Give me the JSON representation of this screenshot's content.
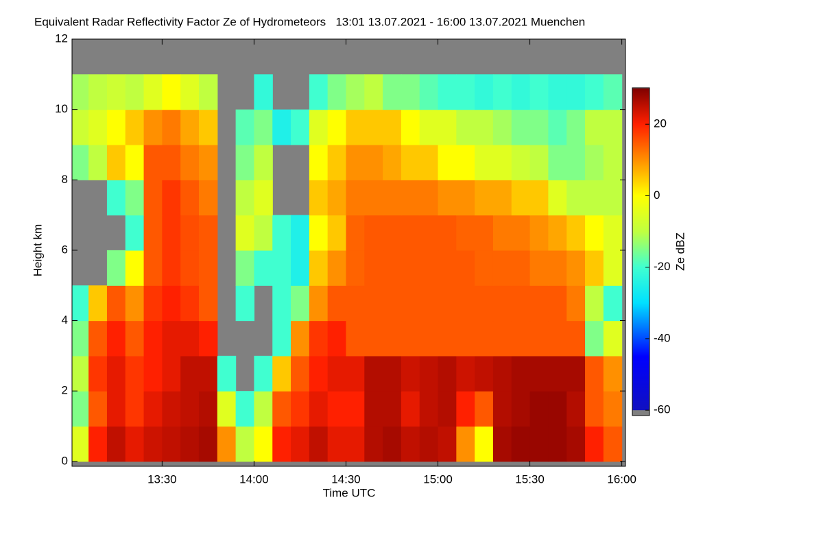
{
  "chart_data": {
    "type": "heatmap",
    "title": "Equivalent Radar Reflectivity Factor Ze of Hydrometeors   13:01 13.07.2021 - 16:00 13.07.2021 Muenchen",
    "x_label": "Time UTC",
    "y_label": "Height km",
    "colorbar_label": "Ze dBZ",
    "x": [
      13.05,
      13.15,
      13.25,
      13.35,
      13.45,
      13.55,
      13.65,
      13.75,
      13.85,
      13.95,
      14.05,
      14.15,
      14.25,
      14.35,
      14.45,
      14.55,
      14.65,
      14.75,
      14.85,
      14.95,
      15.05,
      15.15,
      15.25,
      15.35,
      15.45,
      15.55,
      15.65,
      15.75,
      15.85,
      15.95
    ],
    "y": [
      0.5,
      1.5,
      2.5,
      3.5,
      4.5,
      5.5,
      6.5,
      7.5,
      8.5,
      9.5,
      10.5,
      11.5
    ],
    "z": [
      [
        -5,
        20,
        25,
        22,
        24,
        25,
        26,
        27,
        10,
        -10,
        0,
        20,
        22,
        25,
        22,
        22,
        26,
        27,
        25,
        26,
        25,
        10,
        0,
        27,
        28,
        28,
        28,
        27,
        20,
        15
      ],
      [
        -15,
        15,
        22,
        18,
        22,
        24,
        25,
        26,
        -5,
        -20,
        -10,
        15,
        18,
        22,
        20,
        20,
        26,
        26,
        22,
        25,
        26,
        20,
        15,
        26,
        27,
        28,
        28,
        26,
        15,
        12
      ],
      [
        -10,
        18,
        22,
        18,
        20,
        22,
        25,
        25,
        -20,
        null,
        -20,
        5,
        15,
        20,
        22,
        22,
        26,
        26,
        24,
        25,
        26,
        24,
        25,
        26,
        27,
        27,
        27,
        27,
        15,
        10
      ],
      [
        -15,
        15,
        20,
        15,
        20,
        22,
        22,
        20,
        null,
        null,
        null,
        -20,
        10,
        18,
        20,
        15,
        15,
        15,
        15,
        15,
        15,
        15,
        15,
        15,
        15,
        15,
        15,
        15,
        -15,
        -5
      ],
      [
        -20,
        5,
        15,
        10,
        18,
        20,
        18,
        15,
        null,
        -20,
        null,
        -20,
        -15,
        10,
        15,
        15,
        15,
        15,
        15,
        15,
        15,
        15,
        15,
        15,
        15,
        15,
        15,
        12,
        -10,
        -20
      ],
      [
        null,
        null,
        -15,
        0,
        15,
        18,
        16,
        15,
        null,
        -15,
        -20,
        -20,
        -25,
        5,
        10,
        14,
        15,
        15,
        15,
        15,
        15,
        15,
        14,
        14,
        14,
        12,
        12,
        10,
        5,
        -5
      ],
      [
        null,
        null,
        null,
        -20,
        15,
        18,
        16,
        15,
        null,
        -5,
        -10,
        -20,
        -25,
        0,
        5,
        14,
        15,
        15,
        15,
        15,
        15,
        14,
        14,
        12,
        12,
        10,
        8,
        5,
        0,
        -5
      ],
      [
        null,
        null,
        -20,
        -15,
        15,
        18,
        15,
        12,
        null,
        -10,
        -5,
        null,
        null,
        5,
        8,
        12,
        12,
        12,
        12,
        12,
        10,
        10,
        8,
        8,
        5,
        5,
        -5,
        -10,
        -10,
        -10
      ],
      [
        -15,
        -10,
        5,
        0,
        15,
        15,
        12,
        10,
        null,
        -15,
        -10,
        null,
        null,
        0,
        5,
        10,
        10,
        8,
        5,
        5,
        0,
        0,
        -5,
        -5,
        -8,
        -10,
        -15,
        -15,
        -12,
        -10
      ],
      [
        -8,
        -5,
        0,
        5,
        10,
        12,
        8,
        5,
        null,
        -18,
        -15,
        -25,
        -20,
        -5,
        0,
        5,
        5,
        5,
        0,
        -5,
        -5,
        -10,
        -10,
        -12,
        -15,
        -15,
        -18,
        -15,
        -10,
        -10
      ],
      [
        -12,
        -10,
        -8,
        -10,
        -5,
        0,
        -5,
        -10,
        null,
        null,
        -22,
        null,
        null,
        -20,
        -15,
        -12,
        -10,
        -15,
        -15,
        -18,
        -20,
        -20,
        -22,
        -20,
        -22,
        -20,
        -22,
        -22,
        -20,
        -18
      ],
      [
        null,
        null,
        null,
        null,
        null,
        null,
        null,
        null,
        null,
        null,
        null,
        null,
        null,
        null,
        null,
        null,
        null,
        null,
        null,
        null,
        null,
        null,
        null,
        null,
        null,
        null,
        null,
        null,
        null,
        null
      ]
    ],
    "xlim": [
      13.01,
      16.02
    ],
    "xticks": [
      {
        "value": 13.5,
        "label": "13:30"
      },
      {
        "value": 14,
        "label": "14:00"
      },
      {
        "value": 14.5,
        "label": "14:30"
      },
      {
        "value": 15,
        "label": "15:00"
      },
      {
        "value": 15.5,
        "label": "15:30"
      },
      {
        "value": 16,
        "label": "16:00"
      }
    ],
    "ylim": [
      -0.14,
      12
    ],
    "yticks": [
      0,
      2,
      4,
      6,
      8,
      10,
      12
    ],
    "clim": [
      -61.5,
      30.2
    ],
    "cticks": [
      -60,
      -40,
      -20,
      0,
      20
    ],
    "background_color": "#808080",
    "colorscale": [
      {
        "value": -60,
        "color": "#1010c0"
      },
      {
        "value": -45,
        "color": "#0000ff"
      },
      {
        "value": -30,
        "color": "#00e0ff"
      },
      {
        "value": -20,
        "color": "#40ffd0"
      },
      {
        "value": -10,
        "color": "#c0ff40"
      },
      {
        "value": 0,
        "color": "#ffff00"
      },
      {
        "value": 10,
        "color": "#ff9000"
      },
      {
        "value": 20,
        "color": "#ff2000"
      },
      {
        "value": 30,
        "color": "#800000"
      }
    ]
  }
}
